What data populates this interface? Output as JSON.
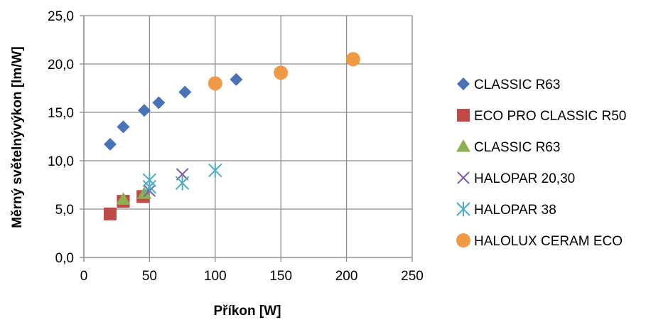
{
  "chart_data": {
    "type": "scatter",
    "title": "",
    "xlabel": "Příkon [W]",
    "ylabel": "Měrný světelnývýkon [lm/W]",
    "xlim": [
      0,
      250
    ],
    "ylim": [
      0,
      25
    ],
    "xticks": [
      0,
      50,
      100,
      150,
      200,
      250
    ],
    "xtick_labels": [
      "0",
      "50",
      "100",
      "150",
      "200",
      "250"
    ],
    "yticks": [
      0,
      5,
      10,
      15,
      20,
      25
    ],
    "ytick_labels": [
      "0,0",
      "5,0",
      "10,0",
      "15,0",
      "20,0",
      "25,0"
    ],
    "grid": "major gridlines on both axes",
    "legend_position": "right",
    "series": [
      {
        "name": "CLASSIC R63",
        "marker": "diamond",
        "color": "#4A73B5",
        "points": [
          [
            20,
            11.7
          ],
          [
            30,
            13.5
          ],
          [
            46,
            15.2
          ],
          [
            57,
            16.0
          ],
          [
            77,
            17.1
          ],
          [
            116,
            18.4
          ]
        ]
      },
      {
        "name": "ECO PRO CLASSIC R50",
        "marker": "square",
        "color": "#BE4B48",
        "points": [
          [
            20,
            4.5
          ],
          [
            30,
            5.8
          ],
          [
            45,
            6.3
          ]
        ]
      },
      {
        "name": "CLASSIC R63",
        "marker": "triangle",
        "color": "#8CB04F",
        "points": [
          [
            30,
            6.0
          ],
          [
            46,
            6.6
          ]
        ]
      },
      {
        "name": "HALOPAR 20,30",
        "marker": "x",
        "color": "#7D5BA6",
        "points": [
          [
            50,
            6.9
          ],
          [
            75,
            8.6
          ]
        ]
      },
      {
        "name": "HALOPAR 38",
        "marker": "star",
        "color": "#4BACC6",
        "points": [
          [
            50,
            8.0
          ],
          [
            50,
            7.3
          ],
          [
            75,
            7.7
          ],
          [
            100,
            9.0
          ]
        ]
      },
      {
        "name": "HALOLUX CERAM ECO",
        "marker": "circle",
        "color": "#F19A46",
        "points": [
          [
            100,
            18.0
          ],
          [
            150,
            19.1
          ],
          [
            205,
            20.5
          ]
        ]
      }
    ]
  }
}
